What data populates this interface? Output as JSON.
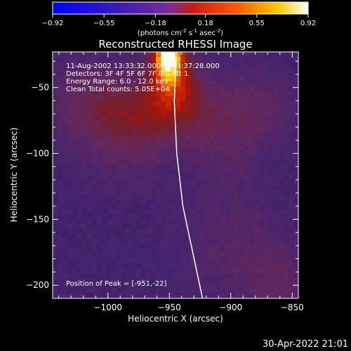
{
  "colorbar": {
    "ticks": [
      "-0.92",
      "-0.55",
      "-0.18",
      "0.18",
      "0.55",
      "0.92"
    ],
    "units_html": "(photons cm<sup>-2</sup> s<sup>-1</sup> asec<sup>-2</sup>)",
    "units_parts": [
      "(photons cm",
      "-2",
      " s",
      "-1",
      " asec",
      "-2",
      ")"
    ]
  },
  "chart_data": {
    "type": "heatmap",
    "title": "Reconstructed RHESSI Image",
    "xlabel": "Heliocentric X (arcsec)",
    "ylabel": "Heliocentric Y (arcsec)",
    "xlim": [
      -1045,
      -845
    ],
    "ylim": [
      -210,
      -23
    ],
    "x_ticks": [
      -1000,
      -950,
      -900,
      -850
    ],
    "y_ticks": [
      -50,
      -100,
      -150,
      -200
    ],
    "x_tick_labels": [
      "−1000",
      "−950",
      "−900",
      "−850"
    ],
    "y_tick_labels": [
      "−50",
      "−100",
      "−150",
      "−200"
    ],
    "value_range": [
      -0.92,
      0.92
    ],
    "annotations": [
      "11-Aug-2002 13:33:32.000 to 13:37:28.000",
      "Detectors: 3F 4F 5F 6F 7F 8F, Att 1",
      "Energy Range: 6.0 - 12.0 keV",
      "Clean    Total counts: 5.05E+04"
    ],
    "peak_label": "Position of Peak = [-951,-22]",
    "peak": [
      -951,
      -22
    ],
    "limb_curve": [
      [
        -944,
        -23
      ],
      [
        -946,
        -60
      ],
      [
        -944,
        -100
      ],
      [
        -939,
        -140
      ],
      [
        -931,
        -175
      ],
      [
        -923,
        -210
      ]
    ]
  },
  "footer": {
    "timestamp": "30-Apr-2022 21:01"
  }
}
